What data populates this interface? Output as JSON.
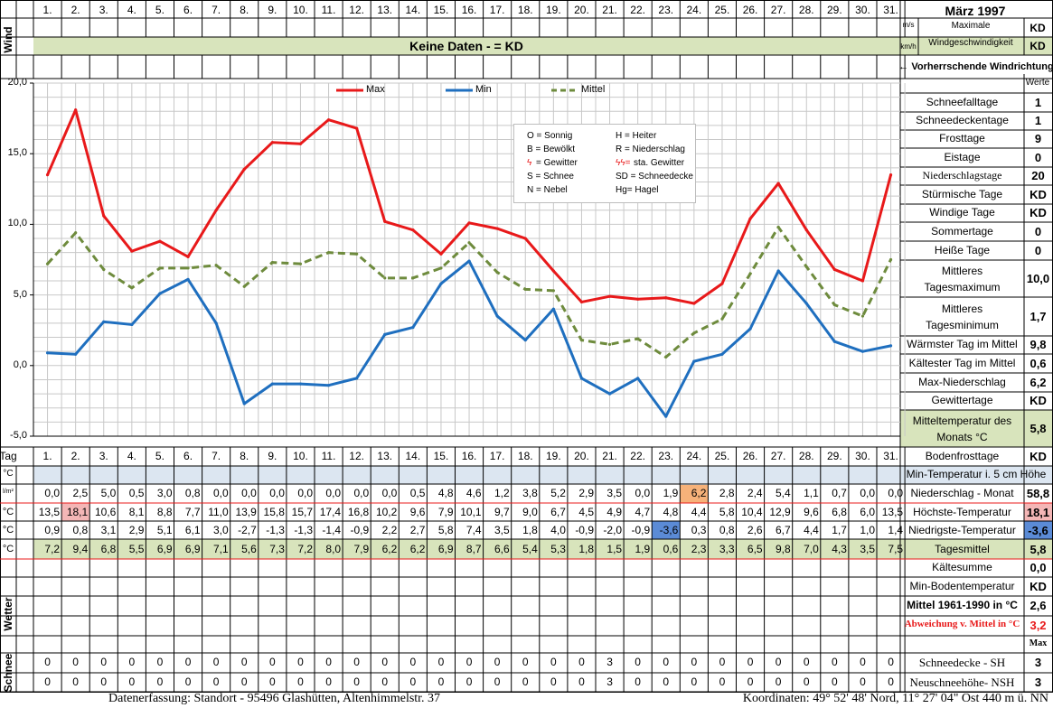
{
  "header": {
    "month_title": "März 1997",
    "wind_label": "Wind",
    "unit_ms": "m/s",
    "unit_kmh": "km/h",
    "max_wind_label_1": "Maximale",
    "max_wind_label_2": "Windgeschwindigkeit",
    "max_wind_value": "KD",
    "max_wind_value_2": "KD",
    "no_data_banner": "Keine Daten -  = KD",
    "wind_dir_label": "← Vorherrschende Windrichtung",
    "werte_label": "Werte"
  },
  "days": [
    "1.",
    "2.",
    "3.",
    "4.",
    "5.",
    "6.",
    "7.",
    "8.",
    "9.",
    "10.",
    "11.",
    "12.",
    "13.",
    "14.",
    "15.",
    "16.",
    "17.",
    "18.",
    "19.",
    "20.",
    "21.",
    "22.",
    "23.",
    "24.",
    "25.",
    "26.",
    "27.",
    "28.",
    "29.",
    "30.",
    "31."
  ],
  "tag_label": "Tag",
  "chart_data": {
    "type": "line",
    "x": [
      1,
      2,
      3,
      4,
      5,
      6,
      7,
      8,
      9,
      10,
      11,
      12,
      13,
      14,
      15,
      16,
      17,
      18,
      19,
      20,
      21,
      22,
      23,
      24,
      25,
      26,
      27,
      28,
      29,
      30,
      31
    ],
    "series": [
      {
        "name": "Max",
        "color": "#e8191a",
        "dashed": false,
        "values": [
          13.5,
          18.1,
          10.6,
          8.1,
          8.8,
          7.7,
          11.0,
          13.9,
          15.8,
          15.7,
          17.4,
          16.8,
          10.2,
          9.6,
          7.9,
          10.1,
          9.7,
          9.0,
          6.7,
          4.5,
          4.9,
          4.7,
          4.8,
          4.4,
          5.8,
          10.4,
          12.9,
          9.6,
          6.8,
          6.0,
          13.5
        ]
      },
      {
        "name": "Min",
        "color": "#1f6fbf",
        "dashed": false,
        "values": [
          0.9,
          0.8,
          3.1,
          2.9,
          5.1,
          6.1,
          3.0,
          -2.7,
          -1.3,
          -1.3,
          -1.4,
          -0.9,
          2.2,
          2.7,
          5.8,
          7.4,
          3.5,
          1.8,
          4.0,
          -0.9,
          -2.0,
          -0.9,
          -3.6,
          0.3,
          0.8,
          2.6,
          6.7,
          4.4,
          1.7,
          1.0,
          1.4
        ]
      },
      {
        "name": "Mittel",
        "color": "#6e8b3d",
        "dashed": true,
        "values": [
          7.2,
          9.4,
          6.8,
          5.5,
          6.9,
          6.9,
          7.1,
          5.6,
          7.3,
          7.2,
          8.0,
          7.9,
          6.2,
          6.2,
          6.9,
          8.7,
          6.6,
          5.4,
          5.3,
          1.8,
          1.5,
          1.9,
          0.6,
          2.3,
          3.3,
          6.5,
          9.8,
          7.0,
          4.3,
          3.5,
          7.5
        ]
      }
    ],
    "ylim": [
      -5,
      20
    ],
    "ytick_labels": [
      "20,0",
      "15,0",
      "10,0",
      "5,0",
      "0,0",
      "-5,0"
    ],
    "grid": true,
    "legend_position": "top"
  },
  "weather_legend": [
    {
      "code": "O = Sonnig",
      "code2": "H = Heiter"
    },
    {
      "code": "B = Bewölkt",
      "code2": "R = Niederschlag"
    },
    {
      "code": "= Gewitter",
      "code2": "sta. Gewitter"
    },
    {
      "code": "S = Schnee",
      "code2": "SD = Schneedecke"
    },
    {
      "code": "N = Nebel",
      "code2": "Hg= Hagel"
    }
  ],
  "table": {
    "min_temp_5cm_unit": "°C",
    "rows": [
      {
        "unit": "l/m²",
        "label": "Niederschlag - Monat",
        "summary": "58,8",
        "values": [
          "0,0",
          "2,5",
          "5,0",
          "0,5",
          "3,0",
          "0,8",
          "0,0",
          "0,0",
          "0,0",
          "0,0",
          "0,0",
          "0,0",
          "0,0",
          "0,5",
          "4,8",
          "4,6",
          "1,2",
          "3,8",
          "5,2",
          "2,9",
          "3,5",
          "0,0",
          "1,9",
          "6,2",
          "2,8",
          "2,4",
          "5,4",
          "1,1",
          "0,7",
          "0,0",
          "0,0"
        ]
      },
      {
        "unit": "°C",
        "label": "Höchste-Temperatur",
        "summary": "18,1",
        "values": [
          "13,5",
          "18,1",
          "10,6",
          "8,1",
          "8,8",
          "7,7",
          "11,0",
          "13,9",
          "15,8",
          "15,7",
          "17,4",
          "16,8",
          "10,2",
          "9,6",
          "7,9",
          "10,1",
          "9,7",
          "9,0",
          "6,7",
          "4,5",
          "4,9",
          "4,7",
          "4,8",
          "4,4",
          "5,8",
          "10,4",
          "12,9",
          "9,6",
          "6,8",
          "6,0",
          "13,5"
        ]
      },
      {
        "unit": "°C",
        "label": "Niedrigste-Temperatur",
        "summary": "-3,6",
        "values": [
          "0,9",
          "0,8",
          "3,1",
          "2,9",
          "5,1",
          "6,1",
          "3,0",
          "-2,7",
          "-1,3",
          "-1,3",
          "-1,4",
          "-0,9",
          "2,2",
          "2,7",
          "5,8",
          "7,4",
          "3,5",
          "1,8",
          "4,0",
          "-0,9",
          "-2,0",
          "-0,9",
          "-3,6",
          "0,3",
          "0,8",
          "2,6",
          "6,7",
          "4,4",
          "1,7",
          "1,0",
          "1,4"
        ]
      },
      {
        "unit": "°C",
        "label": "Tagesmittel",
        "summary": "5,8",
        "values": [
          "7,2",
          "9,4",
          "6,8",
          "5,5",
          "6,9",
          "6,9",
          "7,1",
          "5,6",
          "7,3",
          "7,2",
          "8,0",
          "7,9",
          "6,2",
          "6,2",
          "6,9",
          "8,7",
          "6,6",
          "5,4",
          "5,3",
          "1,8",
          "1,5",
          "1,9",
          "0,6",
          "2,3",
          "3,3",
          "6,5",
          "9,8",
          "7,0",
          "4,3",
          "3,5",
          "7,5"
        ]
      }
    ],
    "snow_rows": [
      {
        "label": "Schneedecke -   SH",
        "summary": "3",
        "values": [
          "0",
          "0",
          "0",
          "0",
          "0",
          "0",
          "0",
          "0",
          "0",
          "0",
          "0",
          "0",
          "0",
          "0",
          "0",
          "0",
          "0",
          "0",
          "0",
          "0",
          "3",
          "0",
          "0",
          "0",
          "0",
          "0",
          "0",
          "0",
          "0",
          "0",
          "0"
        ]
      },
      {
        "label": "Neuschneehöhe- NSH",
        "summary": "3",
        "values": [
          "0",
          "0",
          "0",
          "0",
          "0",
          "0",
          "0",
          "0",
          "0",
          "0",
          "0",
          "0",
          "0",
          "0",
          "0",
          "0",
          "0",
          "0",
          "0",
          "0",
          "3",
          "0",
          "0",
          "0",
          "0",
          "0",
          "0",
          "0",
          "0",
          "0",
          "0"
        ]
      }
    ],
    "weather_label": "Wetter",
    "snow_label": "Schnee",
    "max_label": "Max"
  },
  "stats": [
    {
      "label": "Schneefalltage",
      "value": "1"
    },
    {
      "label": "Schneedeckentage",
      "value": "1"
    },
    {
      "label": "Frosttage",
      "value": "9"
    },
    {
      "label": "Eistage",
      "value": "0"
    },
    {
      "label": "Niederschlagstage",
      "value": "20"
    },
    {
      "label": "Stürmische Tage",
      "value": "KD"
    },
    {
      "label": "Windige Tage",
      "value": "KD"
    },
    {
      "label": "Sommertage",
      "value": "0"
    },
    {
      "label": "Heiße Tage",
      "value": "0"
    },
    {
      "label": "Mittleres Tagesmaximum",
      "label1": "Mittleres",
      "label2": "Tagesmaximum",
      "value": "10,0"
    },
    {
      "label": "Mittleres Tagesminimum",
      "label1": "Mittleres",
      "label2": "Tagesminimum",
      "value": "1,7"
    },
    {
      "label": "Wärmster Tag im Mittel",
      "value": "9,8"
    },
    {
      "label": "Kältester Tag im Mittel",
      "value": "0,6"
    },
    {
      "label": "Max-Niederschlag",
      "value": "6,2"
    },
    {
      "label": "Gewittertage",
      "value": "KD"
    },
    {
      "label": "Mitteltemperatur des Monats °C",
      "label1": "Mitteltemperatur des",
      "label2": "Monats °C",
      "value": "5,8"
    },
    {
      "label": "Bodenfrosttage",
      "value": "KD"
    },
    {
      "label": "Min-Temperatur i. 5 cm Höhe",
      "value": ""
    }
  ],
  "lower_stats": [
    {
      "label": "Kältesumme",
      "value": "0,0"
    },
    {
      "label": "Min-Bodentemperatur",
      "value": "KD"
    },
    {
      "label": "Mittel 1961-1990 in °C",
      "value": "2,6"
    },
    {
      "label": "Abweichung v. Mittel in °C",
      "value": "3,2"
    }
  ],
  "footer": {
    "left": "Datenerfassung:  Standort -  95496  Glashütten, Altenhimmelstr. 37",
    "right": "Koordinaten:  49° 52' 48' Nord,  11° 27' 04\" Ost   440 m ü. NN"
  },
  "colors": {
    "max_highlight": "#f4b6b6",
    "min_highlight": "#5b8bd6",
    "precip_highlight": "#f6b27a",
    "header_green": "#d8e4bc",
    "header_blue": "#dce6f1"
  }
}
